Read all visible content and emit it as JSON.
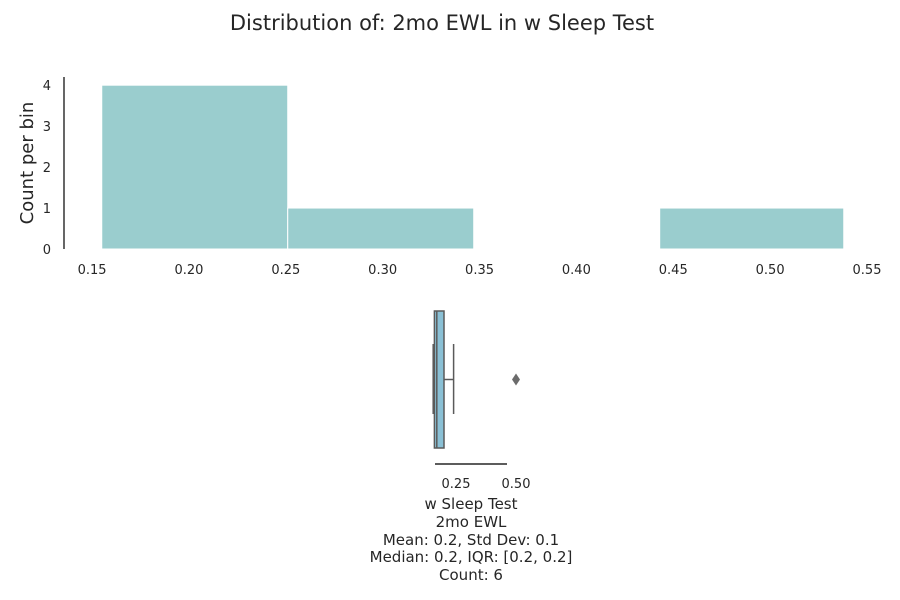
{
  "title": "Distribution of: 2mo EWL in w Sleep Test",
  "colors": {
    "hist_fill": "#9acdce",
    "box_fill": "#8ac0d5",
    "box_edge": "#5a5a5a",
    "axis": "#262626"
  },
  "chart_data": [
    {
      "type": "bar",
      "subtype": "histogram",
      "ylabel": "Count per bin",
      "xlabel": "",
      "bins": [
        {
          "x0": 0.155,
          "x1": 0.251,
          "count": 4
        },
        {
          "x0": 0.251,
          "x1": 0.347,
          "count": 1
        },
        {
          "x0": 0.347,
          "x1": 0.443,
          "count": 0
        },
        {
          "x0": 0.443,
          "x1": 0.538,
          "count": 1
        }
      ],
      "xlim": [
        0.135,
        0.55
      ],
      "ylim": [
        0,
        4.2
      ],
      "xticks": [
        {
          "v": 0.15,
          "label": "0.15"
        },
        {
          "v": 0.2,
          "label": "0.20"
        },
        {
          "v": 0.25,
          "label": "0.25"
        },
        {
          "v": 0.3,
          "label": "0.30"
        },
        {
          "v": 0.35,
          "label": "0.35"
        },
        {
          "v": 0.4,
          "label": "0.40"
        },
        {
          "v": 0.45,
          "label": "0.45"
        },
        {
          "v": 0.5,
          "label": "0.50"
        },
        {
          "v": 0.55,
          "label": "0.55"
        }
      ],
      "yticks": [
        {
          "v": 0,
          "label": "0"
        },
        {
          "v": 1,
          "label": "1"
        },
        {
          "v": 2,
          "label": "2"
        },
        {
          "v": 3,
          "label": "3"
        },
        {
          "v": 4,
          "label": "4"
        }
      ],
      "grid": false
    },
    {
      "type": "box",
      "orientation": "horizontal",
      "whisker_low": 0.155,
      "q1": 0.16,
      "median": 0.17,
      "q3": 0.2,
      "whisker_high": 0.24,
      "outliers": [
        0.5
      ],
      "xlim": [
        0.15,
        0.55
      ],
      "xticks": [
        {
          "v": 0.25,
          "label": "0.25"
        },
        {
          "v": 0.5,
          "label": "0.50"
        }
      ],
      "label_lines": [
        "w Sleep Test",
        "2mo EWL",
        "Mean: 0.2, Std Dev: 0.1",
        "Median: 0.2, IQR: [0.2, 0.2]",
        "Count: 6"
      ]
    }
  ]
}
